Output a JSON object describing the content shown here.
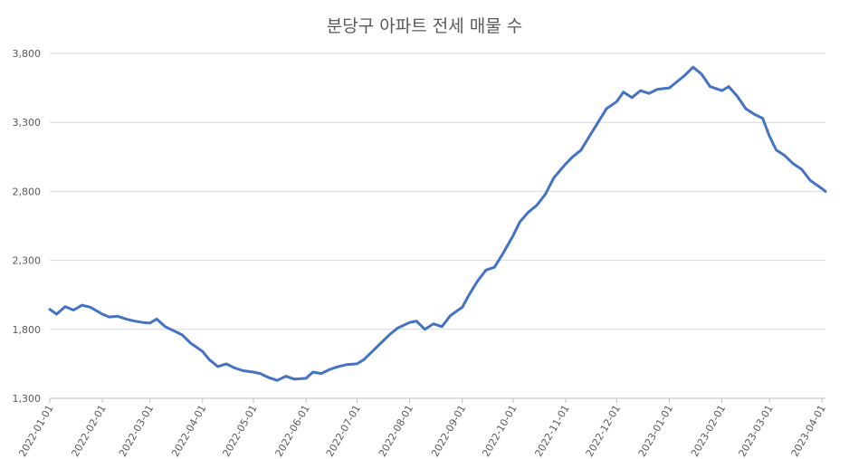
{
  "chart_data": {
    "type": "line",
    "title": "분당구 아파트 전세 매물 수",
    "xlabel": "",
    "ylabel": "",
    "ylim": [
      1300,
      3800
    ],
    "y_ticks": [
      1300,
      1800,
      2300,
      2800,
      3300,
      3800
    ],
    "y_tick_labels": [
      "1,300",
      "1,800",
      "2,300",
      "2,800",
      "3,300",
      "3,800"
    ],
    "x_range": [
      "2022-01-01",
      "2023-04-03"
    ],
    "x_tick_labels": [
      "2022-01-01",
      "2022-02-01",
      "2022-03-01",
      "2022-04-01",
      "2022-05-01",
      "2022-06-01",
      "2022-07-01",
      "2022-08-01",
      "2022-09-01",
      "2022-10-01",
      "2022-11-01",
      "2022-12-01",
      "2023-01-01",
      "2023-02-01",
      "2023-03-01",
      "2023-04-01"
    ],
    "grid": "horizontal",
    "legend": "none",
    "line_color": "#4472C4",
    "series": [
      {
        "x": [
          "2022-01-01",
          "2022-01-05",
          "2022-01-10",
          "2022-01-15",
          "2022-01-20",
          "2022-01-25",
          "2022-02-01",
          "2022-02-05",
          "2022-02-10",
          "2022-02-15",
          "2022-02-20",
          "2022-02-25",
          "2022-03-01",
          "2022-03-05",
          "2022-03-10",
          "2022-03-15",
          "2022-03-20",
          "2022-03-25",
          "2022-04-01",
          "2022-04-05",
          "2022-04-10",
          "2022-04-15",
          "2022-04-20",
          "2022-04-25",
          "2022-05-01",
          "2022-05-05",
          "2022-05-10",
          "2022-05-15",
          "2022-05-20",
          "2022-05-25",
          "2022-06-01",
          "2022-06-05",
          "2022-06-10",
          "2022-06-15",
          "2022-06-20",
          "2022-06-25",
          "2022-07-01",
          "2022-07-05",
          "2022-07-10",
          "2022-07-15",
          "2022-07-20",
          "2022-07-25",
          "2022-08-01",
          "2022-08-05",
          "2022-08-10",
          "2022-08-15",
          "2022-08-20",
          "2022-08-25",
          "2022-09-01",
          "2022-09-05",
          "2022-09-10",
          "2022-09-15",
          "2022-09-20",
          "2022-09-25",
          "2022-10-01",
          "2022-10-05",
          "2022-10-10",
          "2022-10-15",
          "2022-10-20",
          "2022-10-25",
          "2022-11-01",
          "2022-11-05",
          "2022-11-10",
          "2022-11-15",
          "2022-11-20",
          "2022-11-25",
          "2022-12-01",
          "2022-12-05",
          "2022-12-10",
          "2022-12-15",
          "2022-12-20",
          "2022-12-25",
          "2023-01-01",
          "2023-01-05",
          "2023-01-10",
          "2023-01-15",
          "2023-01-20",
          "2023-01-25",
          "2023-02-01",
          "2023-02-05",
          "2023-02-10",
          "2023-02-15",
          "2023-02-20",
          "2023-02-25",
          "2023-03-01",
          "2023-03-05",
          "2023-03-10",
          "2023-03-15",
          "2023-03-20",
          "2023-03-25",
          "2023-04-01",
          "2023-04-03"
        ],
        "values": [
          1945,
          1910,
          1965,
          1940,
          1975,
          1960,
          1910,
          1890,
          1895,
          1875,
          1860,
          1850,
          1845,
          1875,
          1820,
          1790,
          1760,
          1700,
          1640,
          1580,
          1530,
          1550,
          1520,
          1500,
          1490,
          1480,
          1450,
          1430,
          1460,
          1440,
          1445,
          1490,
          1480,
          1510,
          1530,
          1545,
          1550,
          1580,
          1640,
          1700,
          1760,
          1810,
          1850,
          1860,
          1800,
          1840,
          1820,
          1900,
          1960,
          2050,
          2150,
          2230,
          2250,
          2350,
          2480,
          2580,
          2650,
          2700,
          2780,
          2900,
          3000,
          3050,
          3100,
          3200,
          3300,
          3400,
          3450,
          3520,
          3480,
          3530,
          3510,
          3540,
          3550,
          3590,
          3640,
          3700,
          3650,
          3560,
          3530,
          3560,
          3490,
          3400,
          3360,
          3330,
          3200,
          3100,
          3060,
          3000,
          2960,
          2880,
          2820,
          2800
        ]
      }
    ]
  }
}
